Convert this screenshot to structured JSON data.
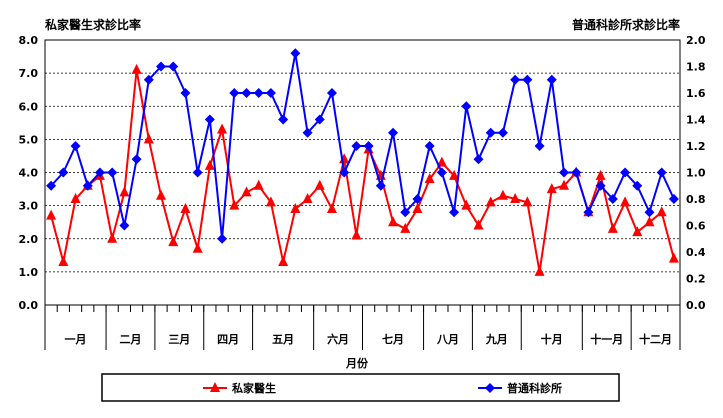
{
  "chart_data": {
    "type": "line",
    "y_left_title": "私家醫生求診比率",
    "y_right_title": "普通科診所求診比率",
    "xlabel": "月份",
    "ylim_left": [
      0,
      8
    ],
    "ylim_right": [
      0,
      2
    ],
    "yticks_left": [
      "0.0",
      "1.0",
      "2.0",
      "3.0",
      "4.0",
      "5.0",
      "6.0",
      "7.0",
      "8.0"
    ],
    "yticks_right": [
      "0.0",
      "0.2",
      "0.4",
      "0.6",
      "0.8",
      "1.0",
      "1.2",
      "1.4",
      "1.6",
      "1.8",
      "2.0"
    ],
    "grid": true,
    "legend_position": "bottom",
    "months": [
      {
        "label": "一月",
        "weeks": 5
      },
      {
        "label": "二月",
        "weeks": 4
      },
      {
        "label": "三月",
        "weeks": 4
      },
      {
        "label": "四月",
        "weeks": 4
      },
      {
        "label": "五月",
        "weeks": 5
      },
      {
        "label": "六月",
        "weeks": 4
      },
      {
        "label": "七月",
        "weeks": 5
      },
      {
        "label": "八月",
        "weeks": 4
      },
      {
        "label": "九月",
        "weeks": 4
      },
      {
        "label": "十月",
        "weeks": 5
      },
      {
        "label": "十一月",
        "weeks": 4
      },
      {
        "label": "十二月",
        "weeks": 4
      }
    ],
    "series": [
      {
        "name": "私家醫生",
        "color": "#ff0000",
        "marker": "triangle",
        "axis": "left",
        "values": [
          2.7,
          1.3,
          3.2,
          3.6,
          3.9,
          2.0,
          3.4,
          7.1,
          5.0,
          3.3,
          1.9,
          2.9,
          1.7,
          4.2,
          5.3,
          3.0,
          3.4,
          3.6,
          3.1,
          1.3,
          2.9,
          3.2,
          3.6,
          2.9,
          4.4,
          2.1,
          4.7,
          3.9,
          2.5,
          2.3,
          2.9,
          3.8,
          4.3,
          3.9,
          3.0,
          2.4,
          3.1,
          3.3,
          3.2,
          3.1,
          1.0,
          3.5,
          3.6,
          4.0,
          2.8,
          3.9,
          2.3,
          3.1,
          2.2,
          2.5,
          2.8,
          1.4
        ]
      },
      {
        "name": "普通科診所",
        "color": "#0000ff",
        "marker": "diamond",
        "axis": "right",
        "values": [
          0.9,
          1.0,
          1.2,
          0.9,
          1.0,
          1.0,
          0.6,
          1.1,
          1.7,
          1.8,
          1.8,
          1.6,
          1.0,
          1.4,
          0.5,
          1.6,
          1.6,
          1.6,
          1.6,
          1.4,
          1.9,
          1.3,
          1.4,
          1.6,
          1.0,
          1.2,
          1.2,
          0.9,
          1.3,
          0.7,
          0.8,
          1.2,
          1.0,
          0.7,
          1.5,
          1.1,
          1.3,
          1.3,
          1.7,
          1.7,
          1.2,
          1.7,
          1.0,
          1.0,
          0.7,
          0.9,
          0.8,
          1.0,
          0.9,
          0.7,
          1.0,
          0.8
        ]
      }
    ]
  }
}
